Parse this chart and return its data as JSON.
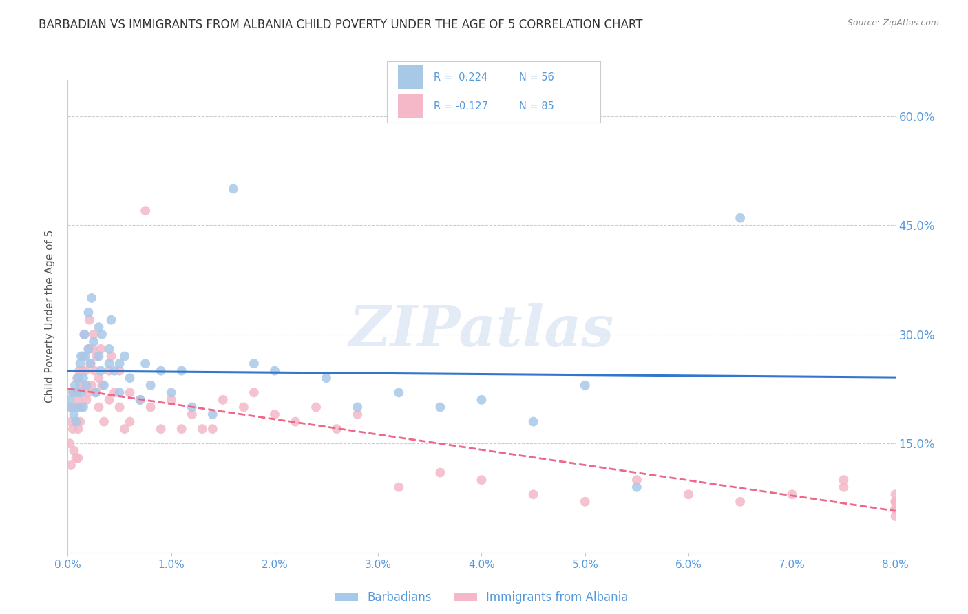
{
  "title": "BARBADIAN VS IMMIGRANTS FROM ALBANIA CHILD POVERTY UNDER THE AGE OF 5 CORRELATION CHART",
  "source": "Source: ZipAtlas.com",
  "ylabel": "Child Poverty Under the Age of 5",
  "yticks": [
    0.0,
    0.15,
    0.3,
    0.45,
    0.6
  ],
  "ytick_labels": [
    "",
    "15.0%",
    "30.0%",
    "45.0%",
    "60.0%"
  ],
  "xmin": 0.0,
  "xmax": 0.08,
  "ymin": 0.0,
  "ymax": 0.65,
  "r_barbadian": 0.224,
  "n_barbadian": 56,
  "r_albania": -0.127,
  "n_albania": 85,
  "color_barbadian": "#a8c8e8",
  "color_albania": "#f4b8c8",
  "color_line_barbadian": "#3377cc",
  "color_line_albania": "#ee6688",
  "legend_label_barbadian": "Barbadians",
  "legend_label_albania": "Immigrants from Albania",
  "watermark": "ZIPatlas",
  "background_color": "#ffffff",
  "grid_color": "#cccccc",
  "title_color": "#333333",
  "axis_label_color": "#5599dd",
  "barbadian_x": [
    0.0002,
    0.0003,
    0.0005,
    0.0006,
    0.0007,
    0.0008,
    0.0009,
    0.001,
    0.001,
    0.0012,
    0.0013,
    0.0013,
    0.0015,
    0.0015,
    0.0016,
    0.0017,
    0.0018,
    0.002,
    0.002,
    0.0022,
    0.0023,
    0.0025,
    0.0027,
    0.003,
    0.003,
    0.0032,
    0.0033,
    0.0035,
    0.004,
    0.004,
    0.0042,
    0.0045,
    0.005,
    0.005,
    0.0055,
    0.006,
    0.007,
    0.0075,
    0.008,
    0.009,
    0.01,
    0.011,
    0.012,
    0.014,
    0.016,
    0.018,
    0.02,
    0.025,
    0.028,
    0.032,
    0.036,
    0.04,
    0.045,
    0.05,
    0.055,
    0.065
  ],
  "barbadian_y": [
    0.21,
    0.2,
    0.22,
    0.19,
    0.23,
    0.18,
    0.22,
    0.24,
    0.2,
    0.26,
    0.22,
    0.27,
    0.24,
    0.2,
    0.3,
    0.27,
    0.23,
    0.33,
    0.28,
    0.26,
    0.35,
    0.29,
    0.22,
    0.31,
    0.27,
    0.25,
    0.3,
    0.23,
    0.28,
    0.26,
    0.32,
    0.25,
    0.22,
    0.26,
    0.27,
    0.24,
    0.21,
    0.26,
    0.23,
    0.25,
    0.22,
    0.25,
    0.2,
    0.19,
    0.5,
    0.26,
    0.25,
    0.24,
    0.2,
    0.22,
    0.2,
    0.21,
    0.18,
    0.23,
    0.09,
    0.46
  ],
  "albania_x": [
    0.0001,
    0.0002,
    0.0003,
    0.0003,
    0.0005,
    0.0005,
    0.0006,
    0.0007,
    0.0008,
    0.0008,
    0.0009,
    0.001,
    0.001,
    0.001,
    0.0011,
    0.0012,
    0.0012,
    0.0013,
    0.0014,
    0.0015,
    0.0015,
    0.0016,
    0.0017,
    0.0018,
    0.002,
    0.002,
    0.0021,
    0.0022,
    0.0023,
    0.0024,
    0.0025,
    0.0026,
    0.0027,
    0.0028,
    0.003,
    0.003,
    0.0032,
    0.0033,
    0.0035,
    0.004,
    0.004,
    0.0042,
    0.0045,
    0.005,
    0.005,
    0.0055,
    0.006,
    0.006,
    0.007,
    0.0075,
    0.008,
    0.009,
    0.01,
    0.011,
    0.012,
    0.013,
    0.014,
    0.015,
    0.017,
    0.018,
    0.02,
    0.022,
    0.024,
    0.026,
    0.028,
    0.032,
    0.036,
    0.04,
    0.045,
    0.05,
    0.055,
    0.06,
    0.065,
    0.07,
    0.075,
    0.075,
    0.08,
    0.08,
    0.08,
    0.08,
    0.08,
    0.08,
    0.08,
    0.08,
    0.08
  ],
  "albania_y": [
    0.2,
    0.15,
    0.18,
    0.12,
    0.22,
    0.17,
    0.14,
    0.2,
    0.18,
    0.13,
    0.24,
    0.21,
    0.17,
    0.13,
    0.25,
    0.23,
    0.18,
    0.2,
    0.25,
    0.27,
    0.23,
    0.3,
    0.25,
    0.21,
    0.28,
    0.22,
    0.32,
    0.26,
    0.23,
    0.28,
    0.3,
    0.25,
    0.22,
    0.27,
    0.24,
    0.2,
    0.28,
    0.23,
    0.18,
    0.25,
    0.21,
    0.27,
    0.22,
    0.25,
    0.2,
    0.17,
    0.22,
    0.18,
    0.21,
    0.47,
    0.2,
    0.17,
    0.21,
    0.17,
    0.19,
    0.17,
    0.17,
    0.21,
    0.2,
    0.22,
    0.19,
    0.18,
    0.2,
    0.17,
    0.19,
    0.09,
    0.11,
    0.1,
    0.08,
    0.07,
    0.1,
    0.08,
    0.07,
    0.08,
    0.09,
    0.1,
    0.08,
    0.06,
    0.07,
    0.07,
    0.06,
    0.06,
    0.05,
    0.07,
    0.06
  ]
}
